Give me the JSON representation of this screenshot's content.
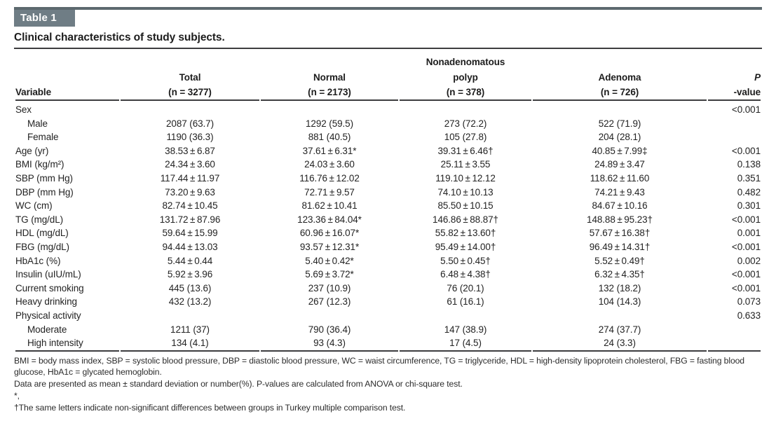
{
  "header": {
    "table_label": "Table 1",
    "caption": "Clinical characteristics of study subjects."
  },
  "table": {
    "columns": {
      "variable": {
        "group": "",
        "name": "",
        "sub": "Variable"
      },
      "total": {
        "group": "",
        "name": "Total",
        "sub": "(n = 3277)"
      },
      "normal": {
        "group": "",
        "name": "Normal",
        "sub": "(n = 2173)"
      },
      "polyp": {
        "group": "Nonadenomatous",
        "name": "polyp",
        "sub": "(n = 378)"
      },
      "adenoma": {
        "group": "",
        "name": "Adenoma",
        "sub": "(n = 726)"
      },
      "p": {
        "group": "",
        "name": "P",
        "sub": "-value"
      }
    },
    "rows": [
      {
        "variable": "Sex",
        "indent": false,
        "total": "",
        "normal": "",
        "polyp": "",
        "adenoma": "",
        "p": "<0.001"
      },
      {
        "variable": "Male",
        "indent": true,
        "total": "2087 (63.7)",
        "normal": "1292 (59.5)",
        "polyp": "273 (72.2)",
        "adenoma": "522 (71.9)",
        "p": ""
      },
      {
        "variable": "Female",
        "indent": true,
        "total": "1190 (36.3)",
        "normal": "881 (40.5)",
        "polyp": "105 (27.8)",
        "adenoma": "204 (28.1)",
        "p": ""
      },
      {
        "variable": "Age (yr)",
        "indent": false,
        "total": "38.53 ± 6.87",
        "normal": "37.61 ± 6.31*",
        "polyp": "39.31 ± 6.46†",
        "adenoma": "40.85 ± 7.99‡",
        "p": "<0.001"
      },
      {
        "variable": "BMI (kg/m²)",
        "indent": false,
        "total": "24.34 ± 3.60",
        "normal": "24.03 ± 3.60",
        "polyp": "25.11 ± 3.55",
        "adenoma": "24.89 ± 3.47",
        "p": "0.138"
      },
      {
        "variable": "SBP (mm Hg)",
        "indent": false,
        "total": "117.44 ± 11.97",
        "normal": "116.76 ± 12.02",
        "polyp": "119.10 ± 12.12",
        "adenoma": "118.62 ± 11.60",
        "p": "0.351"
      },
      {
        "variable": "DBP (mm Hg)",
        "indent": false,
        "total": "73.20 ± 9.63",
        "normal": "72.71 ± 9.57",
        "polyp": "74.10 ± 10.13",
        "adenoma": "74.21 ± 9.43",
        "p": "0.482"
      },
      {
        "variable": "WC (cm)",
        "indent": false,
        "total": "82.74 ± 10.45",
        "normal": "81.62 ± 10.41",
        "polyp": "85.50 ± 10.15",
        "adenoma": "84.67 ± 10.16",
        "p": "0.301"
      },
      {
        "variable": "TG (mg/dL)",
        "indent": false,
        "total": "131.72 ± 87.96",
        "normal": "123.36 ± 84.04*",
        "polyp": "146.86 ± 88.87†",
        "adenoma": "148.88 ± 95.23†",
        "p": "<0.001"
      },
      {
        "variable": "HDL (mg/dL)",
        "indent": false,
        "total": "59.64 ± 15.99",
        "normal": "60.96 ± 16.07*",
        "polyp": "55.82 ± 13.60†",
        "adenoma": "57.67 ± 16.38†",
        "p": "0.001"
      },
      {
        "variable": "FBG (mg/dL)",
        "indent": false,
        "total": "94.44 ± 13.03",
        "normal": "93.57 ± 12.31*",
        "polyp": "95.49 ± 14.00†",
        "adenoma": "96.49 ± 14.31†",
        "p": "<0.001"
      },
      {
        "variable": "HbA1c (%)",
        "indent": false,
        "total": "5.44 ± 0.44",
        "normal": "5.40 ± 0.42*",
        "polyp": "5.50 ± 0.45†",
        "adenoma": "5.52 ± 0.49†",
        "p": "0.002"
      },
      {
        "variable": "Insulin (uIU/mL)",
        "indent": false,
        "total": "5.92 ± 3.96",
        "normal": "5.69 ± 3.72*",
        "polyp": "6.48 ± 4.38†",
        "adenoma": "6.32 ± 4.35†",
        "p": "<0.001"
      },
      {
        "variable": "Current smoking",
        "indent": false,
        "total": "445 (13.6)",
        "normal": "237 (10.9)",
        "polyp": "76 (20.1)",
        "adenoma": "132 (18.2)",
        "p": "<0.001"
      },
      {
        "variable": "Heavy drinking",
        "indent": false,
        "total": "432 (13.2)",
        "normal": "267 (12.3)",
        "polyp": "61 (16.1)",
        "adenoma": "104 (14.3)",
        "p": "0.073"
      },
      {
        "variable": "Physical activity",
        "indent": false,
        "total": "",
        "normal": "",
        "polyp": "",
        "adenoma": "",
        "p": "0.633"
      },
      {
        "variable": "Moderate",
        "indent": true,
        "total": "1211 (37)",
        "normal": "790 (36.4)",
        "polyp": "147 (38.9)",
        "adenoma": "274 (37.7)",
        "p": ""
      },
      {
        "variable": "High intensity",
        "indent": true,
        "total": "134 (4.1)",
        "normal": "93 (4.3)",
        "polyp": "17 (4.5)",
        "adenoma": "24 (3.3)",
        "p": ""
      }
    ]
  },
  "footnotes": [
    "BMI = body mass index, SBP = systolic blood pressure, DBP = diastolic blood pressure, WC = waist circumference, TG = triglyceride, HDL = high-density lipoprotein cholesterol, FBG = fasting blood glucose, HbA1c = glycated hemoglobin.",
    "Data are presented as mean ± standard deviation or number(%). P-values are calculated from ANOVA or chi-square test.",
    "*,",
    "†The same letters indicate non-significant differences between groups in Turkey multiple comparison test."
  ]
}
